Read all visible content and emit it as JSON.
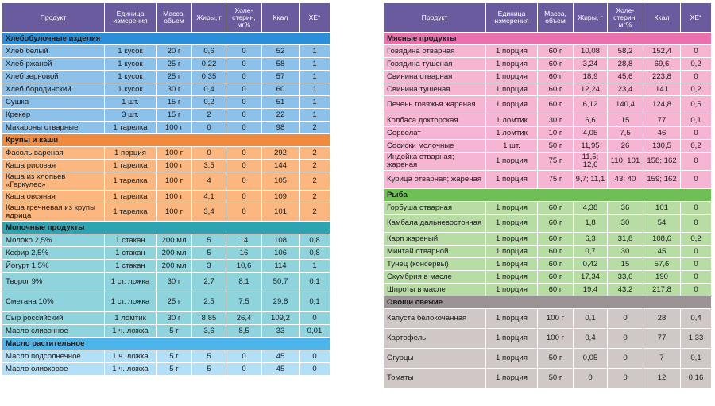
{
  "headers": [
    "Продукт",
    "Единица измерения",
    "Масса, объем",
    "Жиры, г",
    "Холе-стерин, мг%",
    "Ккал",
    "ХЕ*"
  ],
  "left_sections": [
    {
      "theme": "blue",
      "title": "Хлебобулочные изделия",
      "rows": [
        [
          "Хлеб белый",
          "1 кусок",
          "20 г",
          "0,6",
          "0",
          "52",
          "1"
        ],
        [
          "Хлеб ржаной",
          "1 кусок",
          "25 г",
          "0,22",
          "0",
          "58",
          "1"
        ],
        [
          "Хлеб зерновой",
          "1 кусок",
          "25 г",
          "0,35",
          "0",
          "57",
          "1"
        ],
        [
          "Хлеб бородинский",
          "1 кусок",
          "30 г",
          "0,4",
          "0",
          "60",
          "1"
        ],
        [
          "Сушка",
          "1 шт.",
          "15 г",
          "0,2",
          "0",
          "51",
          "1"
        ],
        [
          "Крекер",
          "3 шт.",
          "15 г",
          "2",
          "0",
          "22",
          "1"
        ],
        [
          "Макароны отварные",
          "1 тарелка",
          "100 г",
          "0",
          "0",
          "98",
          "2"
        ]
      ]
    },
    {
      "theme": "orange",
      "title": "Крупы и каши",
      "rows": [
        [
          "Фасоль вареная",
          "1 порция",
          "100 г",
          "0",
          "0",
          "292",
          "2"
        ],
        [
          "Каша рисовая",
          "1 тарелка",
          "100 г",
          "3,5",
          "0",
          "144",
          "2"
        ],
        [
          "Каша из хлопьев «Геркулес»",
          "1 тарелка",
          "100 г",
          "4",
          "0",
          "105",
          "2"
        ],
        [
          "Каша овсяная",
          "1 тарелка",
          "100 г",
          "4,1",
          "0",
          "109",
          "2"
        ],
        [
          "Каша гречневая из крупы ядрица",
          "1 тарелка",
          "100 г",
          "3,4",
          "0",
          "101",
          "2"
        ]
      ]
    },
    {
      "theme": "teal",
      "title": "Молочные продукты",
      "rows": [
        [
          "Молоко 2,5%",
          "1 стакан",
          "200 мл",
          "5",
          "14",
          "108",
          "0,8"
        ],
        [
          "Кефир 2,5%",
          "1 стакан",
          "200 мл",
          "5",
          "16",
          "106",
          "0,8"
        ],
        [
          "Йогурт 1,5%",
          "1 стакан",
          "200 мл",
          "3",
          "10,6",
          "114",
          "1"
        ],
        [
          "Творог 9%",
          "1 ст. ложка",
          "30 г",
          "2,7",
          "8,1",
          "50,7",
          "0,1"
        ],
        [
          "Сметана 10%",
          "1 ст. ложка",
          "25 г",
          "2,5",
          "7,5",
          "29,8",
          "0,1"
        ],
        [
          "Сыр российский",
          "1 ломтик",
          "30 г",
          "8,85",
          "26,4",
          "109,2",
          "0"
        ],
        [
          "Масло сливочное",
          "1 ч. ложка",
          "5 г",
          "3,6",
          "8,5",
          "33",
          "0,01"
        ]
      ]
    },
    {
      "theme": "sky",
      "title": "Масло растительное",
      "rows": [
        [
          "Масло подсолнечное",
          "1 ч. ложка",
          "5 г",
          "5",
          "0",
          "45",
          "0"
        ],
        [
          "Масло оливковое",
          "1 ч. ложка",
          "5 г",
          "5",
          "0",
          "45",
          "0"
        ]
      ]
    }
  ],
  "right_sections": [
    {
      "theme": "pink",
      "title": "Мясные продукты",
      "rows": [
        [
          "Говядина отварная",
          "1 порция",
          "60 г",
          "10,08",
          "58,2",
          "152,4",
          "0"
        ],
        [
          "Говядина тушеная",
          "1 порция",
          "60 г",
          "3,24",
          "28,8",
          "69,6",
          "0,2"
        ],
        [
          "Свинина отварная",
          "1 порция",
          "60 г",
          "18,9",
          "45,6",
          "223,8",
          "0"
        ],
        [
          "Свинина тушеная",
          "1 порция",
          "60 г",
          "12,24",
          "23,4",
          "141",
          "0,2"
        ],
        [
          "Печень говяжья жареная",
          "1 порция",
          "60 г",
          "6,12",
          "140,4",
          "124,8",
          "0,5"
        ],
        [
          "Колбаса докторская",
          "1 ломтик",
          "30 г",
          "6,6",
          "15",
          "77",
          "0,1"
        ],
        [
          "Сервелат",
          "1 ломтик",
          "10 г",
          "4,05",
          "7,5",
          "46",
          "0"
        ],
        [
          "Сосиски молочные",
          "1 шт.",
          "50 г",
          "11,95",
          "26",
          "130,5",
          "0,2"
        ],
        [
          "Индейка отварная; жареная",
          "1 порция",
          "75 г",
          "11,5; 12,6",
          "110; 101",
          "158; 162",
          "0"
        ],
        [
          "Курица отварная; жареная",
          "1 порция",
          "75 г",
          "9,7; 11,1",
          "43; 40",
          "159; 162",
          "0"
        ]
      ]
    },
    {
      "theme": "green",
      "title": "Рыба",
      "rows": [
        [
          "Горбуша отварная",
          "1 порция",
          "60 г",
          "4,38",
          "36",
          "101",
          "0"
        ],
        [
          "Камбала дальневосточная",
          "1 порция",
          "60 г",
          "1,8",
          "30",
          "54",
          "0"
        ],
        [
          "Карп жареный",
          "1 порция",
          "60 г",
          "6,3",
          "31,8",
          "108,6",
          "0,2"
        ],
        [
          "Минтай отварной",
          "1 порция",
          "60 г",
          "0,7",
          "30",
          "45",
          "0"
        ],
        [
          "Тунец (консервы)",
          "1 порция",
          "60 г",
          "0,42",
          "15",
          "57,6",
          "0"
        ],
        [
          "Скумбрия в масле",
          "1 порция",
          "60 г",
          "17,34",
          "33,6",
          "190",
          "0"
        ],
        [
          "Шпроты в масле",
          "1 порция",
          "60 г",
          "19,4",
          "43,2",
          "217,8",
          "0"
        ]
      ]
    },
    {
      "theme": "gray",
      "title": "Овощи свежие",
      "rows": [
        [
          "Капуста белокочанная",
          "1 порция",
          "100 г",
          "0,1",
          "0",
          "28",
          "0,4"
        ],
        [
          "Картофель",
          "1 порция",
          "100 г",
          "0,4",
          "0",
          "77",
          "1,33"
        ],
        [
          "Огурцы",
          "1 порция",
          "50 г",
          "0,05",
          "0",
          "7",
          "0,1"
        ],
        [
          "Томаты",
          "1 порция",
          "50 г",
          "0",
          "0",
          "12",
          "0,16"
        ]
      ]
    }
  ]
}
